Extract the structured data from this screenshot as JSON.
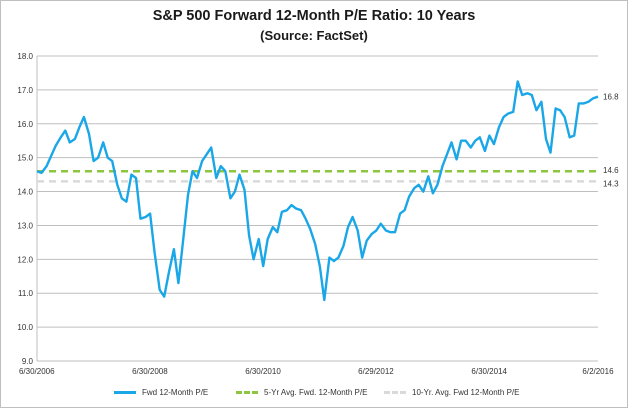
{
  "chart_data": {
    "type": "line",
    "title": "S&P 500 Forward 12-Month P/E Ratio: 10 Years",
    "subtitle": "(Source: FactSet)",
    "xlabel": "",
    "ylabel": "",
    "ylim": [
      9.0,
      18.0
    ],
    "yticks": [
      "18.0",
      "17.0",
      "16.0",
      "15.0",
      "14.0",
      "13.0",
      "12.0",
      "11.0",
      "10.0",
      "9.0"
    ],
    "xticks": [
      "6/30/2006",
      "6/30/2008",
      "6/30/2010",
      "6/29/2012",
      "6/30/2014",
      "6/2/2016"
    ],
    "grid": true,
    "legend_position": "bottom",
    "series": [
      {
        "name": "Fwd 12-Month P/E",
        "color": "#1aa7e8",
        "style": "solid",
        "end_label": "16.8",
        "x": [
          2006.5,
          2006.58,
          2006.67,
          2006.75,
          2006.83,
          2006.92,
          2007.0,
          2007.08,
          2007.17,
          2007.25,
          2007.33,
          2007.42,
          2007.5,
          2007.58,
          2007.67,
          2007.75,
          2007.83,
          2007.92,
          2008.0,
          2008.08,
          2008.17,
          2008.25,
          2008.33,
          2008.42,
          2008.5,
          2008.58,
          2008.67,
          2008.75,
          2008.83,
          2008.92,
          2009.0,
          2009.08,
          2009.17,
          2009.25,
          2009.33,
          2009.42,
          2009.5,
          2009.58,
          2009.67,
          2009.75,
          2009.83,
          2009.92,
          2010.0,
          2010.08,
          2010.17,
          2010.25,
          2010.33,
          2010.42,
          2010.5,
          2010.58,
          2010.67,
          2010.75,
          2010.83,
          2010.92,
          2011.0,
          2011.08,
          2011.17,
          2011.25,
          2011.33,
          2011.42,
          2011.5,
          2011.58,
          2011.67,
          2011.75,
          2011.83,
          2011.92,
          2012.0,
          2012.08,
          2012.17,
          2012.25,
          2012.33,
          2012.42,
          2012.5,
          2012.58,
          2012.67,
          2012.75,
          2012.83,
          2012.92,
          2013.0,
          2013.08,
          2013.17,
          2013.25,
          2013.33,
          2013.42,
          2013.5,
          2013.58,
          2013.67,
          2013.75,
          2013.83,
          2013.92,
          2014.0,
          2014.08,
          2014.17,
          2014.25,
          2014.33,
          2014.42,
          2014.5,
          2014.58,
          2014.67,
          2014.75,
          2014.83,
          2014.92,
          2015.0,
          2015.08,
          2015.17,
          2015.25,
          2015.33,
          2015.42,
          2015.5,
          2015.58,
          2015.67,
          2015.75,
          2015.83,
          2015.92,
          2016.0,
          2016.08,
          2016.17,
          2016.25,
          2016.33,
          2016.42
        ],
        "y": [
          14.6,
          14.55,
          14.75,
          15.05,
          15.35,
          15.6,
          15.8,
          15.45,
          15.55,
          15.9,
          16.2,
          15.7,
          14.9,
          15.0,
          15.45,
          15.0,
          14.9,
          14.2,
          13.8,
          13.7,
          14.5,
          14.4,
          13.2,
          13.25,
          13.35,
          12.2,
          11.1,
          10.9,
          11.6,
          12.3,
          11.3,
          12.5,
          13.9,
          14.6,
          14.4,
          14.9,
          15.1,
          15.3,
          14.4,
          14.75,
          14.6,
          13.8,
          14.0,
          14.5,
          14.05,
          12.7,
          12.0,
          12.6,
          11.8,
          12.6,
          12.95,
          12.8,
          13.4,
          13.45,
          13.6,
          13.5,
          13.45,
          13.2,
          12.9,
          12.45,
          11.8,
          10.8,
          12.05,
          11.95,
          12.05,
          12.4,
          12.95,
          13.25,
          12.85,
          12.05,
          12.55,
          12.75,
          12.85,
          13.05,
          12.85,
          12.8,
          12.8,
          13.35,
          13.45,
          13.85,
          14.1,
          14.2,
          14.0,
          14.45,
          13.95,
          14.2,
          14.75,
          15.1,
          15.45,
          14.95,
          15.5,
          15.5,
          15.3,
          15.5,
          15.6,
          15.2,
          15.65,
          15.4,
          15.9,
          16.2,
          16.3,
          16.35,
          17.25,
          16.85,
          16.9,
          16.85,
          16.4,
          16.65,
          15.55,
          15.15,
          16.45,
          16.4,
          16.2,
          15.6,
          15.65,
          16.6,
          16.6,
          16.65,
          16.75,
          16.8
        ]
      },
      {
        "name": "5-Yr Avg. Fwd. 12-Month P/E",
        "color": "#8cc63f",
        "style": "dashed",
        "value": 14.6,
        "end_label": "14.6"
      },
      {
        "name": "10-Yr. Avg. Fwd 12-Month P/E",
        "color": "#d9d9d9",
        "style": "dashed",
        "value": 14.3,
        "end_label": "14.3"
      }
    ]
  }
}
